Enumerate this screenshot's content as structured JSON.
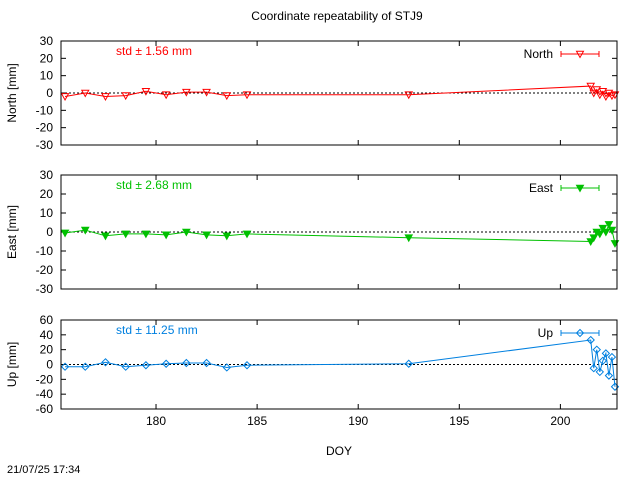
{
  "title": "Coordinate repeatability of STJ9",
  "timestamp": "21/07/25 17:34",
  "colors": {
    "north": "#ff0000",
    "east": "#00c000",
    "up": "#0080e0"
  },
  "chart_data": [
    {
      "type": "line",
      "ylabel": "North [mm]",
      "xlabel": "",
      "xlim": [
        175.3,
        202.8
      ],
      "ylim": [
        -30,
        30
      ],
      "yticks": [
        -30,
        -20,
        -10,
        0,
        10,
        20,
        30
      ],
      "xticks": [
        180,
        185,
        190,
        195,
        200
      ],
      "show_x_ticklabels": false,
      "std_label": "std ± 1.56 mm",
      "legend_position": "top-right",
      "series": [
        {
          "name": "North",
          "marker": "triangle-down-open",
          "x": [
            175.5,
            176.5,
            177.5,
            178.5,
            179.5,
            180.5,
            181.5,
            182.5,
            183.5,
            184.5,
            192.5,
            201.5,
            201.65,
            201.8,
            201.95,
            202.1,
            202.25,
            202.4,
            202.55,
            202.7
          ],
          "y": [
            -2,
            0,
            -2,
            -1.5,
            1,
            -1,
            0.5,
            0.5,
            -1.5,
            -1,
            -1,
            4,
            0,
            2,
            -1,
            1,
            -2,
            0,
            -1.5,
            -1
          ]
        }
      ]
    },
    {
      "type": "line",
      "ylabel": "East [mm]",
      "xlabel": "",
      "xlim": [
        175.3,
        202.8
      ],
      "ylim": [
        -30,
        30
      ],
      "yticks": [
        -30,
        -20,
        -10,
        0,
        10,
        20,
        30
      ],
      "xticks": [
        180,
        185,
        190,
        195,
        200
      ],
      "show_x_ticklabels": false,
      "std_label": "std ± 2.68 mm",
      "legend_position": "top-right",
      "series": [
        {
          "name": "East",
          "marker": "triangle-down-filled",
          "x": [
            175.5,
            176.5,
            177.5,
            178.5,
            179.5,
            180.5,
            181.5,
            182.5,
            183.5,
            184.5,
            192.5,
            201.5,
            201.65,
            201.8,
            201.95,
            202.1,
            202.25,
            202.4,
            202.55,
            202.7
          ],
          "y": [
            -0.5,
            1,
            -2,
            -1,
            -1,
            -1.5,
            0,
            -1.5,
            -2,
            -1,
            -3,
            -5,
            -3,
            0,
            -1,
            2,
            0,
            4,
            1,
            -6
          ]
        }
      ]
    },
    {
      "type": "line",
      "ylabel": "Up [mm]",
      "xlabel": "DOY",
      "xlim": [
        175.3,
        202.8
      ],
      "ylim": [
        -60,
        60
      ],
      "yticks": [
        -60,
        -40,
        -20,
        0,
        20,
        40,
        60
      ],
      "xticks": [
        180,
        185,
        190,
        195,
        200
      ],
      "show_x_ticklabels": true,
      "std_label": "std ± 11.25 mm",
      "legend_position": "top-right",
      "series": [
        {
          "name": "Up",
          "marker": "diamond-open",
          "x": [
            175.5,
            176.5,
            177.5,
            178.5,
            179.5,
            180.5,
            181.5,
            182.5,
            183.5,
            184.5,
            192.5,
            201.5,
            201.65,
            201.8,
            201.95,
            202.1,
            202.25,
            202.4,
            202.55,
            202.7
          ],
          "y": [
            -3,
            -3,
            3,
            -3,
            -1,
            1,
            2,
            2,
            -4,
            -1,
            1,
            33,
            -5,
            20,
            -10,
            5,
            15,
            -15,
            10,
            -30
          ]
        }
      ]
    }
  ]
}
